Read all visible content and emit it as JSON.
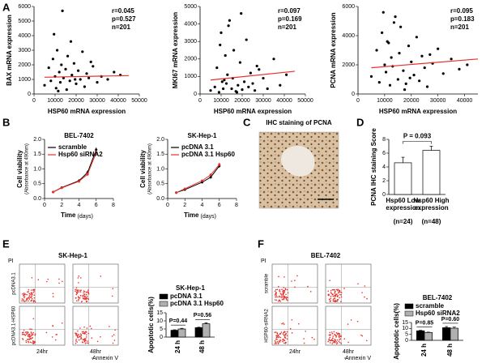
{
  "panel_labels": [
    "A",
    "B",
    "C",
    "D",
    "E",
    "F"
  ],
  "ihc": {
    "title": "IHC staining of PCNA"
  },
  "flow": [
    {
      "title": "SK-Hep-1",
      "rows": [
        "pcDNA3.1",
        "pcDNA3.1-HSP60"
      ],
      "cols": [
        "24hr",
        "48hr"
      ],
      "x_axis": "Annexin V",
      "y_axis": "PI"
    },
    {
      "title": "BEL-7402",
      "rows": [
        "scramble",
        "HSP60-siRNA2"
      ],
      "cols": [
        "24hr",
        "48hr"
      ],
      "x_axis": "Annexin V",
      "y_axis": "PI"
    }
  ],
  "chart_data": [
    {
      "type": "scatter",
      "color": "#000000",
      "x": [
        5000,
        7000,
        8000,
        9000,
        10000,
        10500,
        11000,
        12000,
        12500,
        13000,
        14000,
        15000,
        15500,
        16000,
        17000,
        18000,
        19000,
        20000,
        21000,
        22000,
        23000,
        24000,
        25000,
        26000,
        28000,
        30000,
        32000,
        35000,
        38000,
        41000,
        9500,
        13500,
        17500,
        11500,
        19500,
        27000
      ],
      "y": [
        600,
        1800,
        900,
        2400,
        1200,
        400,
        3000,
        1500,
        800,
        2000,
        1100,
        1700,
        300,
        2600,
        900,
        1300,
        2100,
        700,
        1600,
        1000,
        2900,
        500,
        1400,
        1100,
        1900,
        800,
        1200,
        1000,
        1500,
        1300,
        4100,
        5700,
        3600,
        200,
        1000,
        2200
      ],
      "xlim": [
        0,
        50000
      ],
      "xticks": [
        0,
        10000,
        20000,
        30000,
        40000,
        50000
      ],
      "ylim": [
        0,
        6000
      ],
      "yticks": [
        0,
        1000,
        2000,
        3000,
        4000,
        5000,
        6000
      ],
      "xlabel": "HSP60 mRNA expression",
      "ylabel": "BAX mRNA expression",
      "stats": [
        "r=0.045",
        "p=0.527",
        "n=201"
      ],
      "trend": {
        "x": [
          5000,
          45000
        ],
        "y": [
          1150,
          1260
        ],
        "color": "#e8302a"
      }
    },
    {
      "type": "scatter",
      "color": "#000000",
      "x": [
        5000,
        7000,
        8000,
        9000,
        10000,
        10500,
        11000,
        12000,
        12500,
        13000,
        14000,
        15000,
        15500,
        16000,
        17000,
        18000,
        19000,
        20000,
        21000,
        22000,
        23000,
        24000,
        25000,
        26000,
        28000,
        30000,
        32000,
        35000,
        38000,
        41000,
        9500,
        13500,
        17500,
        11500,
        19500,
        27000
      ],
      "y": [
        200,
        400,
        1500,
        100,
        3500,
        700,
        300,
        2200,
        600,
        1100,
        4200,
        300,
        900,
        2500,
        150,
        500,
        1800,
        250,
        700,
        3100,
        400,
        1200,
        600,
        200,
        1400,
        900,
        300,
        2000,
        500,
        1100,
        2800,
        3900,
        100,
        800,
        4600,
        1600
      ],
      "xlim": [
        0,
        50000
      ],
      "xticks": [
        0,
        10000,
        20000,
        30000,
        40000,
        50000
      ],
      "ylim": [
        0,
        5000
      ],
      "yticks": [
        0,
        1000,
        2000,
        3000,
        4000,
        5000
      ],
      "xlabel": "HSP60 mRNA expression",
      "ylabel": "MKI67 mRNA expression",
      "stats": [
        "r=0.097",
        "p=0.169",
        "n=201"
      ],
      "trend": {
        "x": [
          5000,
          45000
        ],
        "y": [
          800,
          1300
        ],
        "color": "#e8302a"
      }
    },
    {
      "type": "scatter",
      "color": "#000000",
      "x": [
        5000,
        7000,
        8000,
        9000,
        10000,
        10500,
        11000,
        12000,
        12500,
        13000,
        14000,
        15000,
        15500,
        16000,
        17000,
        18000,
        19000,
        20000,
        21000,
        22000,
        23000,
        24000,
        25000,
        26000,
        28000,
        30000,
        32000,
        35000,
        38000,
        41000,
        9500,
        13500,
        17500,
        11500,
        19500,
        27000
      ],
      "y": [
        1200,
        3000,
        800,
        4200,
        2000,
        1500,
        3600,
        600,
        2500,
        1900,
        5300,
        1000,
        2800,
        4600,
        1600,
        700,
        3300,
        2200,
        1300,
        3900,
        900,
        2600,
        1800,
        500,
        2100,
        3100,
        1400,
        2400,
        1700,
        2000,
        5600,
        4900,
        300,
        3500,
        1100,
        2700
      ],
      "xlim": [
        0,
        45000
      ],
      "xticks": [
        0,
        10000,
        20000,
        30000,
        40000
      ],
      "ylim": [
        0,
        6000
      ],
      "yticks": [
        0,
        2000,
        4000,
        6000
      ],
      "xlabel": "HSP60 mRNA expression",
      "ylabel": "PCNA mRNA expression",
      "stats": [
        "r=0.095",
        "p=0.183",
        "n=201"
      ],
      "trend": {
        "x": [
          5000,
          45000
        ],
        "y": [
          1800,
          2400
        ],
        "color": "#e8302a"
      }
    },
    {
      "type": "line",
      "title": "BEL-7402",
      "x": [
        1,
        2,
        4,
        5,
        6
      ],
      "xlim": [
        0,
        8
      ],
      "xticks": [
        0,
        2,
        4,
        6,
        8
      ],
      "ylim": [
        0,
        2
      ],
      "yticks": [
        {
          "value": 0,
          "label": "0.0"
        },
        0.5,
        {
          "value": 1,
          "label": "1.0"
        },
        1.5,
        {
          "value": 2,
          "label": "2.0"
        }
      ],
      "xlabel": "Time",
      "xlabel_unit": "(days)",
      "ylabel": "Cell viability",
      "ylabel_sub": "(Absorbance at 490nm)",
      "series": [
        {
          "name": "scramble",
          "color": "#000000",
          "values": [
            0.22,
            0.37,
            0.6,
            0.88,
            1.65
          ],
          "errors": [
            0.02,
            0.03,
            0.05,
            0.07,
            0.08
          ]
        },
        {
          "name": "Hsp60 siRNA2",
          "color": "#e8302a",
          "values": [
            0.22,
            0.36,
            0.58,
            0.82,
            1.55
          ],
          "errors": [
            0.02,
            0.03,
            0.04,
            0.06,
            0.07
          ]
        }
      ]
    },
    {
      "type": "line",
      "title": "SK-Hep-1",
      "x": [
        1,
        2,
        4,
        5,
        6
      ],
      "xlim": [
        0,
        8
      ],
      "xticks": [
        0,
        2,
        4,
        6,
        8
      ],
      "ylim": [
        0,
        2
      ],
      "yticks": [
        {
          "value": 0,
          "label": "0.0"
        },
        0.5,
        {
          "value": 1,
          "label": "1.0"
        },
        1.5,
        {
          "value": 2,
          "label": "2.0"
        }
      ],
      "xlabel": "Time",
      "xlabel_unit": "(days)",
      "ylabel": "Cell viability",
      "ylabel_sub": "(Absorbance at 490nm)",
      "series": [
        {
          "name": "pcDNA 3.1",
          "color": "#000000",
          "values": [
            0.2,
            0.3,
            0.55,
            0.72,
            1.1
          ],
          "errors": [
            0.02,
            0.02,
            0.04,
            0.05,
            0.06
          ]
        },
        {
          "name": "pcDNA 3.1 Hsp60",
          "color": "#e8302a",
          "values": [
            0.2,
            0.33,
            0.6,
            0.8,
            1.15
          ],
          "errors": [
            0.02,
            0.03,
            0.04,
            0.05,
            0.06
          ]
        }
      ]
    },
    {
      "type": "bar",
      "categories": [
        [
          "Hsp60 Low",
          "expression",
          "(n=24)"
        ],
        [
          "Hsp60 High",
          "expression",
          "(n=48)"
        ]
      ],
      "values": [
        4.6,
        6.4
      ],
      "errors": [
        0.8,
        0.6
      ],
      "color": "#ffffff",
      "ylim": [
        0,
        8
      ],
      "yticks": [
        0,
        2,
        4,
        6,
        8
      ],
      "ylabel": "PCNA IHC staining Score",
      "annotations": [
        "P = 0.093"
      ]
    },
    {
      "type": "bar",
      "title": "SK-Hep-1",
      "categories": [
        "24 h",
        "48 h"
      ],
      "series": [
        {
          "name": "pcDNA 3.1",
          "color": "#000000",
          "values": [
            4.2,
            5.8
          ],
          "errors": [
            0.3,
            0.3
          ]
        },
        {
          "name": "pcDNA 3.1 Hsp60",
          "color": "#b0b0b0",
          "values": [
            5.0,
            8.2
          ],
          "errors": [
            0.4,
            0.6
          ]
        }
      ],
      "ylim": [
        0,
        15
      ],
      "yticks": [
        0,
        5,
        10,
        15
      ],
      "ylabel": "Apoptotic cells(%)",
      "annotations": [
        "P=0.44",
        "P=0.56"
      ]
    },
    {
      "type": "bar",
      "title": "BEL-7402",
      "categories": [
        "24 h",
        "48 h"
      ],
      "series": [
        {
          "name": "scramble",
          "color": "#000000",
          "values": [
            8.0,
            10.6
          ],
          "errors": [
            0.4,
            1.0
          ]
        },
        {
          "name": "Hsp60 siRNA2",
          "color": "#b0b0b0",
          "values": [
            6.6,
            10.2
          ],
          "errors": [
            0.3,
            0.9
          ]
        }
      ],
      "ylim": [
        0,
        15
      ],
      "yticks": [
        0,
        5,
        10,
        15
      ],
      "ylabel": "Apoptotic cells(%)",
      "annotations": [
        "P=0.85",
        "P=0.60"
      ]
    }
  ]
}
